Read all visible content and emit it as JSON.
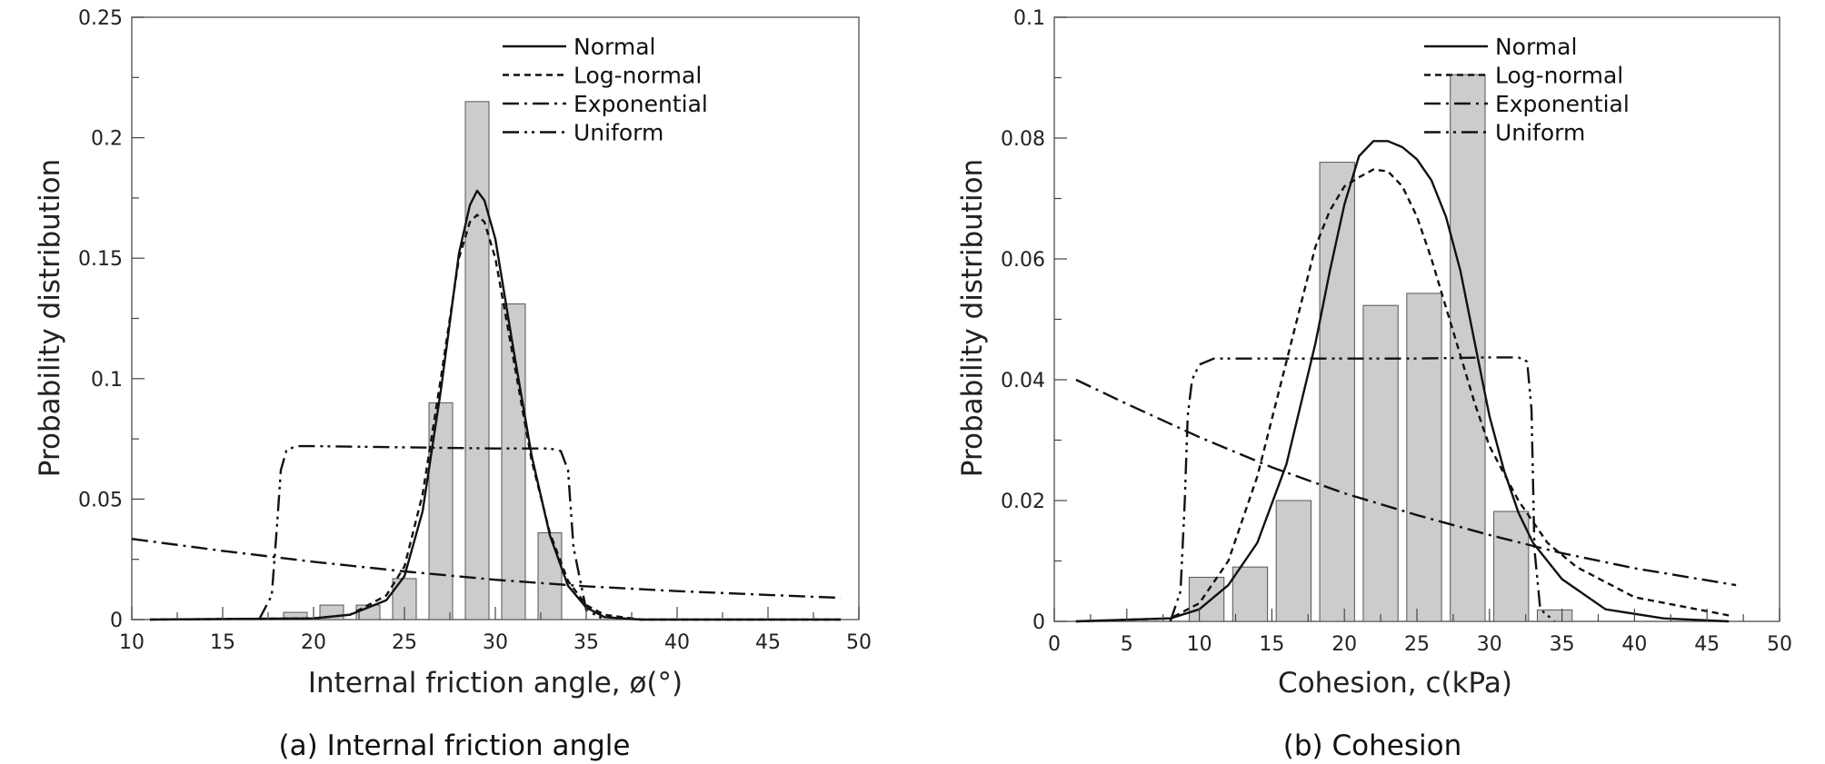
{
  "chart_data": [
    {
      "type": "bar",
      "caption": "(a) Internal friction angle",
      "xlabel": "Internal friction angle, ø(°)",
      "ylabel": "Probability distribution",
      "xlim": [
        10,
        50
      ],
      "ylim": [
        0,
        0.25
      ],
      "xticks": [
        "10",
        "15",
        "20",
        "25",
        "30",
        "35",
        "40",
        "45",
        "50"
      ],
      "yticks": [
        "0",
        "0.05",
        "0.1",
        "0.15",
        "0.2",
        "0.25"
      ],
      "legend_position": "top-right",
      "bars": {
        "x": [
          19,
          21,
          23,
          25,
          27,
          29,
          31,
          33
        ],
        "values": [
          0.003,
          0.006,
          0.006,
          0.017,
          0.09,
          0.215,
          0.131,
          0.036
        ]
      },
      "series": [
        {
          "name": "Normal",
          "x": [
            11,
            20,
            22,
            24,
            25,
            26,
            27,
            28,
            28.6,
            29,
            29.4,
            30,
            31,
            32,
            33,
            34,
            35,
            36,
            38,
            40,
            45,
            49
          ],
          "values": [
            0,
            0.0005,
            0.002,
            0.008,
            0.018,
            0.045,
            0.095,
            0.152,
            0.172,
            0.178,
            0.174,
            0.158,
            0.112,
            0.068,
            0.035,
            0.014,
            0.005,
            0.001,
            0,
            0,
            0,
            0
          ]
        },
        {
          "name": "Log-normal",
          "x": [
            11,
            20,
            22,
            24,
            25,
            26,
            27,
            28,
            28.6,
            29,
            29.4,
            30,
            31,
            32,
            33,
            34,
            35,
            36,
            38,
            40,
            45,
            49
          ],
          "values": [
            0,
            0.0005,
            0.002,
            0.01,
            0.022,
            0.052,
            0.1,
            0.15,
            0.165,
            0.168,
            0.165,
            0.15,
            0.108,
            0.066,
            0.036,
            0.016,
            0.006,
            0.002,
            0,
            0,
            0,
            0
          ]
        },
        {
          "name": "Exponential",
          "x": [
            10,
            15,
            20,
            25,
            30,
            35,
            40,
            45,
            49
          ],
          "values": [
            0.0335,
            0.0285,
            0.024,
            0.02,
            0.0165,
            0.0138,
            0.0118,
            0.0102,
            0.009
          ]
        },
        {
          "name": "Uniform",
          "x": [
            17,
            17.7,
            18,
            18.2,
            18.5,
            19,
            20,
            25,
            30,
            33,
            33.6,
            34,
            34.3,
            35,
            36
          ],
          "values": [
            0,
            0.01,
            0.04,
            0.062,
            0.07,
            0.072,
            0.072,
            0.0715,
            0.071,
            0.071,
            0.07,
            0.062,
            0.03,
            0.004,
            0
          ]
        }
      ]
    },
    {
      "type": "bar",
      "caption": "(b) Cohesion",
      "xlabel": "Cohesion, c(kPa)",
      "ylabel": "Probability distribution",
      "xlim": [
        0,
        50
      ],
      "ylim": [
        0,
        0.1
      ],
      "xticks": [
        "0",
        "5",
        "10",
        "15",
        "20",
        "25",
        "30",
        "35",
        "40",
        "45",
        "50"
      ],
      "yticks": [
        "0",
        "0.02",
        "0.04",
        "0.06",
        "0.08",
        "0.1"
      ],
      "legend_position": "top-right",
      "bars": {
        "x": [
          10.5,
          13.5,
          16.5,
          19.5,
          22.5,
          25.5,
          28.5,
          31.5,
          34.5
        ],
        "values": [
          0.0073,
          0.009,
          0.02,
          0.076,
          0.0523,
          0.0543,
          0.0905,
          0.0182,
          0.0019
        ]
      },
      "series": [
        {
          "name": "Normal",
          "x": [
            1.5,
            8,
            10,
            12,
            14,
            16,
            18,
            19,
            20,
            21,
            22,
            23,
            24,
            25,
            26,
            27,
            28,
            29,
            30,
            31,
            32,
            33,
            35,
            38,
            42,
            46.5
          ],
          "values": [
            0,
            0.0005,
            0.002,
            0.006,
            0.013,
            0.026,
            0.046,
            0.058,
            0.069,
            0.077,
            0.0795,
            0.0795,
            0.0785,
            0.0765,
            0.073,
            0.067,
            0.058,
            0.046,
            0.034,
            0.025,
            0.018,
            0.013,
            0.007,
            0.002,
            0.0005,
            0
          ]
        },
        {
          "name": "Log-normal",
          "x": [
            1.5,
            8,
            10,
            12,
            14,
            16,
            18,
            19,
            20,
            21,
            22,
            23,
            24,
            25,
            26,
            27,
            28,
            29,
            30,
            32,
            34,
            36,
            40,
            46.5
          ],
          "values": [
            0,
            0.0005,
            0.003,
            0.01,
            0.024,
            0.043,
            0.062,
            0.068,
            0.072,
            0.0735,
            0.0748,
            0.0745,
            0.072,
            0.067,
            0.06,
            0.052,
            0.044,
            0.036,
            0.029,
            0.02,
            0.013,
            0.009,
            0.004,
            0.001
          ]
        },
        {
          "name": "Exponential",
          "x": [
            1.5,
            5,
            10,
            15,
            20,
            25,
            30,
            35,
            40,
            47
          ],
          "values": [
            0.04,
            0.036,
            0.0305,
            0.0255,
            0.0212,
            0.0176,
            0.0143,
            0.0113,
            0.0088,
            0.006
          ]
        },
        {
          "name": "Uniform",
          "x": [
            8,
            8.7,
            9,
            9.2,
            9.5,
            10,
            11,
            15,
            20,
            25,
            30,
            32,
            32.6,
            32.9,
            33.1,
            33.5,
            34.5
          ],
          "values": [
            0,
            0.005,
            0.02,
            0.034,
            0.04,
            0.0425,
            0.0435,
            0.0435,
            0.0435,
            0.0435,
            0.0437,
            0.0437,
            0.043,
            0.035,
            0.012,
            0.002,
            0
          ]
        }
      ]
    }
  ]
}
